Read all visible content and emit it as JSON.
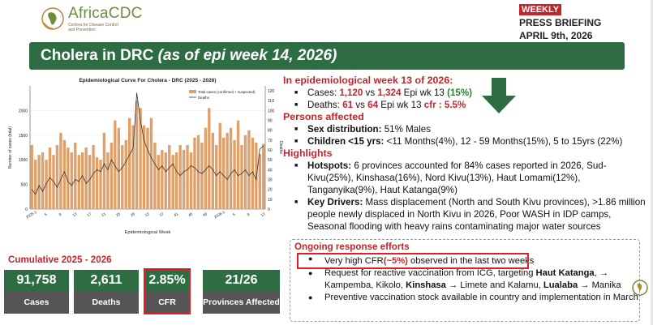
{
  "header": {
    "org_name": "AfricaCDC",
    "org_sub": "Centres for Disease Control and Prevention",
    "weekly": "WEEKLY",
    "press": "PRESS BRIEFING",
    "date": "APRIL 9th, 2026"
  },
  "title": {
    "main": "Cholera in DRC ",
    "italic": "(as of epi week 14, 2026)"
  },
  "colors": {
    "green": "#2e6c43",
    "red": "#c0272d",
    "bar": "#e0a06a"
  },
  "chart_data": {
    "type": "bar",
    "title": "Epidemiological Curve For Cholera - DRC (2025 - 2026)",
    "xlabel": "Epidemiological Week",
    "ylabel": "Number of cases (total)",
    "ylabel_right": "Deaths",
    "ylim": [
      0,
      2500
    ],
    "ylim_right": [
      0,
      125
    ],
    "yticks": [
      "0",
      "500",
      "1000",
      "1500",
      "2000"
    ],
    "yticks_right": [
      "0",
      "10",
      "20",
      "30",
      "40",
      "50",
      "60",
      "70",
      "80",
      "90",
      "100",
      "110",
      "120"
    ],
    "xticks": [
      "2025-1",
      "5",
      "9",
      "13",
      "17",
      "21",
      "25",
      "29",
      "33",
      "37",
      "41",
      "45",
      "49",
      "2026-1",
      "5",
      "9",
      "13"
    ],
    "legend": [
      "Total cases (confirmed + suspected)",
      "Deaths"
    ],
    "legend_position": "top-right",
    "series": [
      {
        "name": "Total cases (confirmed + suspected)",
        "values": [
          1300,
          1000,
          1100,
          1150,
          1000,
          1250,
          1100,
          1300,
          1550,
          1400,
          1250,
          1150,
          1350,
          1100,
          1150,
          1250,
          1100,
          1300,
          1050,
          1000,
          1550,
          1150,
          1350,
          1800,
          1650,
          1300,
          1400,
          1850,
          1700,
          2200,
          2050,
          1700,
          1650,
          1850,
          1350,
          1100,
          1200,
          1150,
          1300,
          1100,
          1150,
          1300,
          1200,
          1300,
          1150,
          1450,
          1500,
          1350,
          1650,
          2050,
          1550,
          1300,
          1750,
          1450,
          1550,
          1650,
          1400,
          1800,
          1300,
          1500,
          1600,
          1450,
          1350,
          1120,
          1324
        ]
      },
      {
        "name": "Deaths",
        "values": [
          20,
          15,
          24,
          18,
          26,
          32,
          28,
          22,
          30,
          38,
          28,
          24,
          30,
          28,
          34,
          26,
          30,
          36,
          40,
          38,
          46,
          40,
          50,
          44,
          38,
          42,
          48,
          55,
          62,
          118,
          90,
          70,
          60,
          52,
          46,
          40,
          44,
          38,
          42,
          46,
          38,
          34,
          38,
          40,
          44,
          42,
          38,
          36,
          40,
          44,
          40,
          34,
          38,
          34,
          30,
          36,
          40,
          34,
          36,
          40,
          34,
          38,
          30,
          61,
          64
        ]
      }
    ]
  },
  "summary": {
    "heading": "In epidemiological week 13 of 2026:",
    "cases_label": "Cases: ",
    "cases_a": "1,120",
    "vs1": " vs ",
    "cases_b": "1,324",
    "cases_tail": " Epi wk 13 ",
    "cases_pct": "(15%)",
    "deaths_label": "Deaths: ",
    "deaths_a": "61",
    "vs2": " vs ",
    "deaths_b": "64",
    "deaths_tail": " Epi wk 13 ",
    "cfr_label": "cfr : 5.5%"
  },
  "persons": {
    "heading": "Persons affected",
    "sex_label": "Sex distribution:",
    "sex_value": " 51% Males",
    "children_label": "Children <15 yrs:",
    "children_value": " <11 Months(4%), 12 - 59 Months(15%), 5 to 15yrs (22%)"
  },
  "highlights": {
    "heading": "Highlights",
    "hotspots_label": "Hotspots:",
    "hotspots_value": " 6 provinces accounted for 84% cases reported in 2026, Sud-Kivu(25%), Kinshasa(16%), Nord Kivu(13%), Haut Lomami(12%), Tanganyika(9%), Haut Katanga(9%)",
    "drivers_label": "Key Drivers:",
    "drivers_value": " Mass displacement (North and South Kivu provinces), >1.86 million people newly displaced in North Kivu in 2026, Poor WASH in IDP camps, Seasonal flooding with heavy rains contaminating major water sources"
  },
  "cumulative": {
    "title": "Cumulative 2025 - 2026",
    "stats": [
      {
        "value": "91,758",
        "label": "Cases"
      },
      {
        "value": "2,611",
        "label": "Deaths"
      },
      {
        "value": "2.85%",
        "label": "CFR"
      },
      {
        "value": "21/26",
        "label": "Provinces Affected"
      }
    ]
  },
  "response": {
    "heading": "Ongoing response efforts",
    "item1_a": "Very high CFR",
    "item1_b": "(~5%)",
    "item1_c": " observed in the last two weeks",
    "item2_a": "Request for reactive vaccination from ICG, targeting ",
    "item2_b": "Haut Katanga",
    "item2_c": ", → Kampemba, Kikolo, ",
    "item2_d": "Kinshasa",
    "item2_e": " → Limete and Kalamu, ",
    "item2_f": "Lualaba",
    "item2_g": " → Manika",
    "item3": "Preventive vaccination stock available in country and implementation in March"
  }
}
